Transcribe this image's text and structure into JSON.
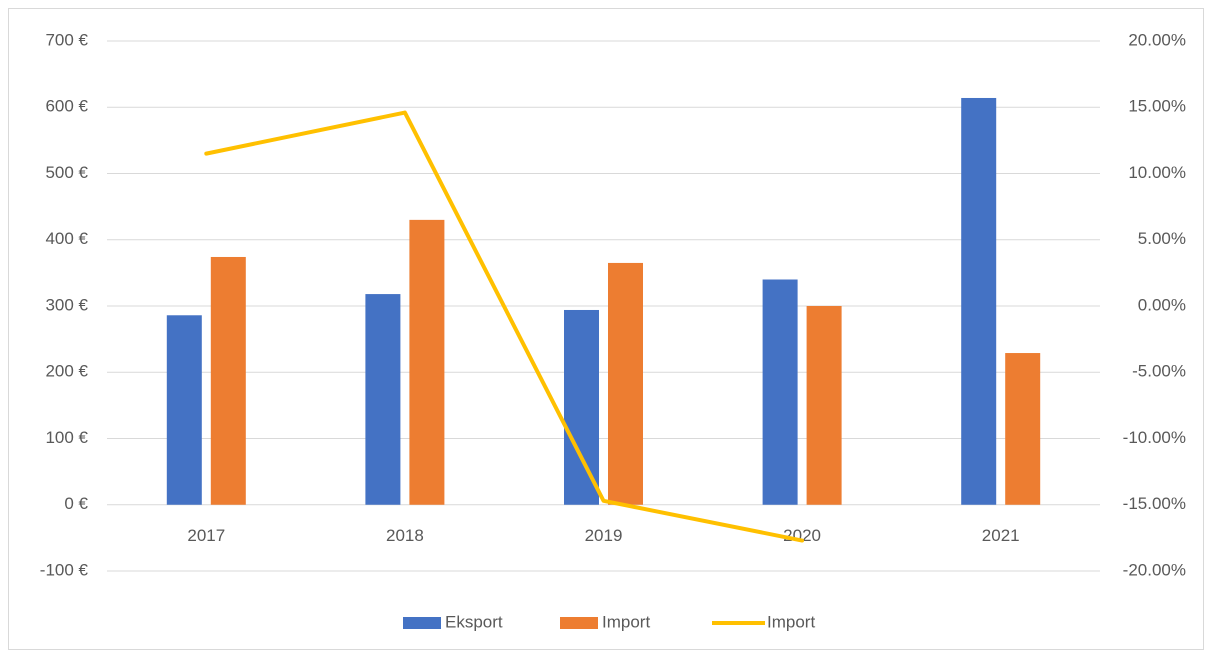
{
  "chart_data": {
    "type": "bar",
    "categories": [
      "2017",
      "2018",
      "2019",
      "2020",
      "2021"
    ],
    "series": [
      {
        "name": "Eksport",
        "color": "#4472c4",
        "values": [
          286,
          318,
          294,
          340,
          614
        ]
      },
      {
        "name": "Import",
        "color": "#ed7d31",
        "values": [
          374,
          430,
          365,
          300,
          229
        ]
      },
      {
        "name": "Import",
        "color": "#ffc000",
        "type": "line",
        "axis": "y2",
        "values": [
          11.5,
          14.6,
          -14.7,
          -17.7,
          null
        ]
      }
    ],
    "ylim": [
      -100,
      700
    ],
    "yticks": [
      {
        "value": -100,
        "label": "-100 €"
      },
      {
        "value": 0,
        "label": "0 €"
      },
      {
        "value": 100,
        "label": "100 €"
      },
      {
        "value": 200,
        "label": "200 €"
      },
      {
        "value": 300,
        "label": "300 €"
      },
      {
        "value": 400,
        "label": "400 €"
      },
      {
        "value": 500,
        "label": "500 €"
      },
      {
        "value": 600,
        "label": "600 €"
      },
      {
        "value": 700,
        "label": "700 €"
      }
    ],
    "y2lim": [
      -20,
      20
    ],
    "y2ticks": [
      {
        "value": -20,
        "label": "-20.00%"
      },
      {
        "value": -15,
        "label": "-15.00%"
      },
      {
        "value": -10,
        "label": "-10.00%"
      },
      {
        "value": -5,
        "label": "-5.00%"
      },
      {
        "value": 0,
        "label": "0.00%"
      },
      {
        "value": 5,
        "label": "5.00%"
      },
      {
        "value": 10,
        "label": "10.00%"
      },
      {
        "value": 15,
        "label": "15.00%"
      },
      {
        "value": 20,
        "label": "20.00%"
      }
    ],
    "grid": true,
    "legend": "bottom"
  }
}
